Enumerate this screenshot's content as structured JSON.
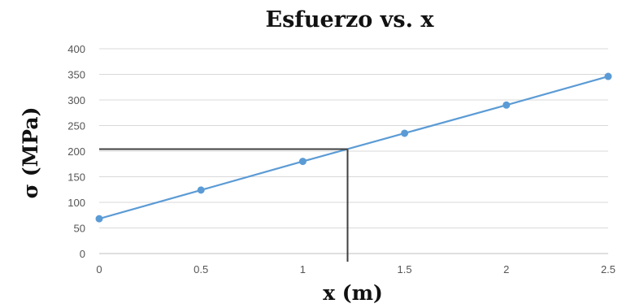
{
  "chart_data": {
    "type": "line",
    "title": "Esfuerzo vs. x",
    "xlabel": "x (m)",
    "ylabel": "σ (MPa)",
    "x": [
      0,
      0.5,
      1,
      1.5,
      2,
      2.5
    ],
    "xticks": [
      "0",
      "0.5",
      "1",
      "1.5",
      "2",
      "2.5"
    ],
    "yticks": [
      "0",
      "50",
      "100",
      "150",
      "200",
      "250",
      "300",
      "350",
      "400"
    ],
    "xlim": [
      0,
      2.5
    ],
    "ylim": [
      0,
      400
    ],
    "grid": "horizontal",
    "series": [
      {
        "values": [
          68,
          124,
          180,
          235,
          290,
          346
        ],
        "color": "#5b9bd5"
      }
    ],
    "reference_point": {
      "x": 1.22,
      "y": 204,
      "color": "#404040"
    }
  }
}
